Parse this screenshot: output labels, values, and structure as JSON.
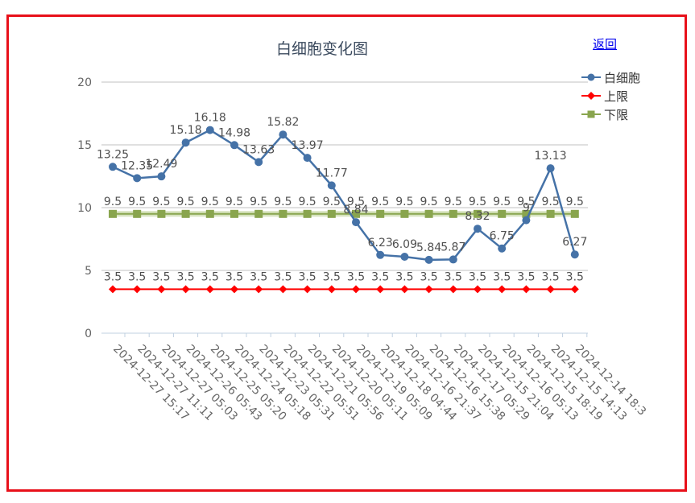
{
  "chart_data": {
    "type": "line",
    "title": "白细胞变化图",
    "xlabel": "",
    "ylabel": "",
    "ylim": [
      0,
      20
    ],
    "yticks": [
      0,
      5,
      10,
      15,
      20
    ],
    "grid": true,
    "legend_position": "top-right",
    "categories": [
      "2024-12-27 15:17",
      "2024-12-27 11:11",
      "2024-12-27 05:03",
      "2024-12-26 05:43",
      "2024-12-25 05:20",
      "2024-12-24 05:18",
      "2024-12-23 05:31",
      "2024-12-22 05:51",
      "2024-12-21 05:56",
      "2024-12-20 05:11",
      "2024-12-19 05:09",
      "2024-12-18 04:44",
      "2024-12-16 21:37",
      "2024-12-16 15:38",
      "2024-12-17 05:29",
      "2024-12-15 21:04",
      "2024-12-16 05:13",
      "2024-12-15 18:19",
      "2024-12-15 14:13",
      "2024-12-14 18:3"
    ],
    "series": [
      {
        "name": "白细胞",
        "color": "#4572a7",
        "marker": "circle",
        "values": [
          13.25,
          12.35,
          12.49,
          15.18,
          16.18,
          14.98,
          13.63,
          15.82,
          13.97,
          11.77,
          8.84,
          6.23,
          6.09,
          5.84,
          5.87,
          8.32,
          6.75,
          9,
          13.13,
          6.27
        ],
        "labels": [
          "13.25",
          "12.35",
          "12.49",
          "15.18",
          "16.18",
          "14.98",
          "13.63",
          "15.82",
          "13.97",
          "11.77",
          "8.84",
          "6.23",
          "6.09",
          "5.84",
          "5.87",
          "8.32",
          "6.75",
          "9",
          "13.13",
          "6.27"
        ]
      },
      {
        "name": "上限",
        "color": "#ff0000",
        "marker": "diamond",
        "values": [
          3.5,
          3.5,
          3.5,
          3.5,
          3.5,
          3.5,
          3.5,
          3.5,
          3.5,
          3.5,
          3.5,
          3.5,
          3.5,
          3.5,
          3.5,
          3.5,
          3.5,
          3.5,
          3.5,
          3.5
        ],
        "labels": [
          "3.5",
          "3.5",
          "3.5",
          "3.5",
          "3.5",
          "3.5",
          "3.5",
          "3.5",
          "3.5",
          "3.5",
          "3.5",
          "3.5",
          "3.5",
          "3.5",
          "3.5",
          "3.5",
          "3.5",
          "3.5",
          "3.5",
          "3.5"
        ]
      },
      {
        "name": "下限",
        "color": "#89a54e",
        "marker": "square",
        "values": [
          9.5,
          9.5,
          9.5,
          9.5,
          9.5,
          9.5,
          9.5,
          9.5,
          9.5,
          9.5,
          9.5,
          9.5,
          9.5,
          9.5,
          9.5,
          9.5,
          9.5,
          9.5,
          9.5,
          9.5
        ],
        "labels": [
          "9.5",
          "9.5",
          "9.5",
          "9.5",
          "9.5",
          "9.5",
          "9.5",
          "9.5",
          "9.5",
          "9.5",
          "9.5",
          "9.5",
          "9.5",
          "9.5",
          "9.5",
          "9.5",
          "9.5",
          "9.5",
          "9.5",
          "9.5"
        ]
      }
    ]
  },
  "nav": {
    "back_label": "返回"
  }
}
